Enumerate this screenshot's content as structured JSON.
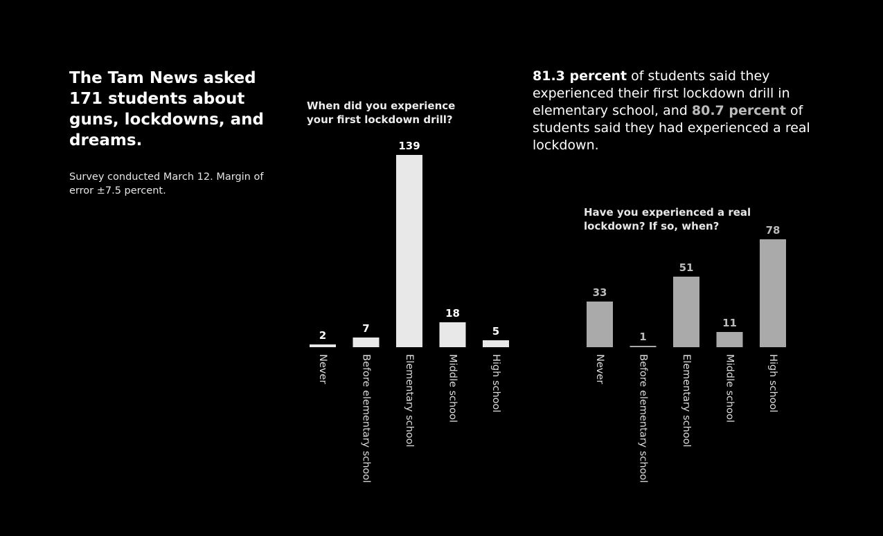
{
  "headline": "The Tam News asked 171 students about guns, lockdowns, and dreams.",
  "survey_note": "Survey conducted March 12. Margin of error ±7.5 percent.",
  "summary": {
    "pct1": "81.3 percent",
    "text1": " of students said they experienced their first lockdown drill in elementary school, and ",
    "pct2": "80.7 percent",
    "text2": " of students said they had experienced a real lockdown."
  },
  "colors": {
    "background": "#000000",
    "chart1_bar": "#e8e8e8",
    "chart2_bar": "#aaaaaa",
    "chart1_value_label": "#ffffff",
    "chart2_value_label": "#bbbbbb",
    "category_label": "#dddddd"
  },
  "chart_data": [
    {
      "type": "bar",
      "title": "When did you experience your first lockdown drill?",
      "categories": [
        "Never",
        "Before elementary school",
        "Elementary school",
        "Middle school",
        "High school"
      ],
      "values": [
        2,
        7,
        139,
        18,
        5
      ],
      "ylim": [
        0,
        139
      ],
      "grid": false
    },
    {
      "type": "bar",
      "title": "Have you experienced a real lockdown? If so, when?",
      "categories": [
        "Never",
        "Before elementary school",
        "Elementary school",
        "Middle school",
        "High school"
      ],
      "values": [
        33,
        1,
        51,
        11,
        78
      ],
      "ylim": [
        0,
        78
      ],
      "grid": false
    }
  ]
}
